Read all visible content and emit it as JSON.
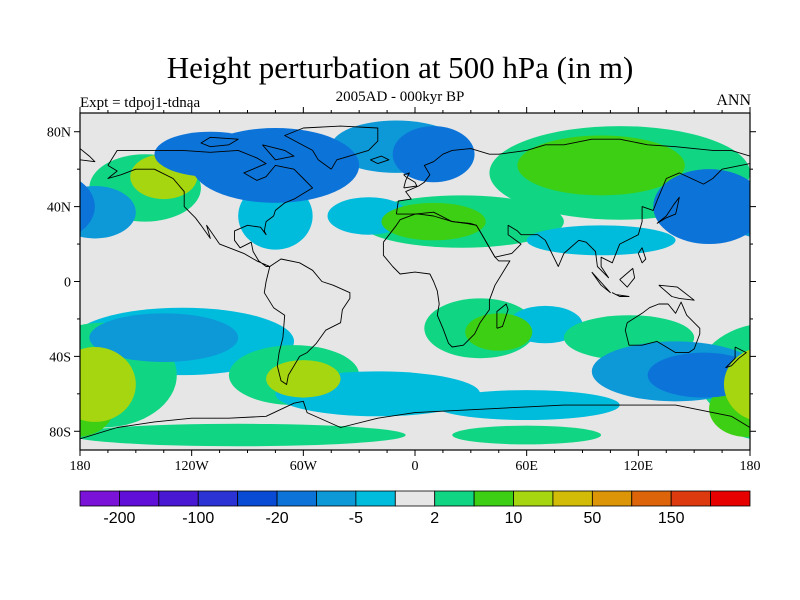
{
  "title": "Height perturbation at 500 hPa (in m)",
  "subtitle": "2005AD - 000kyr BP",
  "left_label": "Expt = tdpoj1-tdnaa",
  "right_label": "ANN",
  "map": {
    "projection": "cylindrical-equidistant",
    "lon_range": [
      -180,
      180
    ],
    "lat_range": [
      -90,
      90
    ],
    "lon_ticks": [
      {
        "value": -180,
        "label": "180"
      },
      {
        "value": -120,
        "label": "120W"
      },
      {
        "value": -60,
        "label": "60W"
      },
      {
        "value": 0,
        "label": "0"
      },
      {
        "value": 60,
        "label": "60E"
      },
      {
        "value": 120,
        "label": "120E"
      },
      {
        "value": 180,
        "label": "180"
      }
    ],
    "lat_ticks": [
      {
        "value": 80,
        "label": "80N"
      },
      {
        "value": 40,
        "label": "40N"
      },
      {
        "value": 0,
        "label": "0"
      },
      {
        "value": -40,
        "label": "40S"
      },
      {
        "value": -80,
        "label": "80S"
      }
    ],
    "background_color": "#e6e6e6",
    "anomalies": [
      {
        "lon": -135,
        "lat": 56,
        "rlon": 18,
        "rlat": 12,
        "level": 3
      },
      {
        "lon": -145,
        "lat": 50,
        "rlon": 30,
        "rlat": 18,
        "level": 1
      },
      {
        "lon": -172,
        "lat": 37,
        "rlon": 22,
        "rlat": 14,
        "level": -2
      },
      {
        "lon": -75,
        "lat": 62,
        "rlon": 45,
        "rlat": 20,
        "level": -3
      },
      {
        "lon": -110,
        "lat": 68,
        "rlon": 30,
        "rlat": 12,
        "level": -3
      },
      {
        "lon": 10,
        "lat": 68,
        "rlon": 22,
        "rlat": 15,
        "level": -3
      },
      {
        "lon": -10,
        "lat": 72,
        "rlon": 35,
        "rlat": 14,
        "level": -2
      },
      {
        "lon": 10,
        "lat": 32,
        "rlon": 28,
        "rlat": 10,
        "level": 2
      },
      {
        "lon": 25,
        "lat": 32,
        "rlon": 55,
        "rlat": 14,
        "level": 1
      },
      {
        "lon": -25,
        "lat": 35,
        "rlon": 22,
        "rlat": 10,
        "level": -1
      },
      {
        "lon": -75,
        "lat": 35,
        "rlon": 20,
        "rlat": 18,
        "level": -1
      },
      {
        "lon": 100,
        "lat": 62,
        "rlon": 45,
        "rlat": 16,
        "level": 2
      },
      {
        "lon": 110,
        "lat": 58,
        "rlon": 70,
        "rlat": 25,
        "level": 1
      },
      {
        "lon": 158,
        "lat": 40,
        "rlon": 30,
        "rlat": 20,
        "level": -3
      },
      {
        "lon": 100,
        "lat": 22,
        "rlon": 40,
        "rlat": 8,
        "level": -1
      },
      {
        "lon": 45,
        "lat": -27,
        "rlon": 18,
        "rlat": 10,
        "level": 2
      },
      {
        "lon": 35,
        "lat": -25,
        "rlon": 30,
        "rlat": 16,
        "level": 1
      },
      {
        "lon": 70,
        "lat": -23,
        "rlon": 20,
        "rlat": 10,
        "level": -1
      },
      {
        "lon": 155,
        "lat": -50,
        "rlon": 30,
        "rlat": 12,
        "level": -3
      },
      {
        "lon": 140,
        "lat": -48,
        "rlon": 45,
        "rlat": 16,
        "level": -2
      },
      {
        "lon": 115,
        "lat": -30,
        "rlon": 35,
        "rlat": 12,
        "level": 1
      },
      {
        "lon": -135,
        "lat": -30,
        "rlon": 40,
        "rlat": 13,
        "level": -2
      },
      {
        "lon": -125,
        "lat": -32,
        "rlon": 60,
        "rlat": 18,
        "level": -1
      },
      {
        "lon": -60,
        "lat": -52,
        "rlon": 20,
        "rlat": 10,
        "level": 3
      },
      {
        "lon": -65,
        "lat": -50,
        "rlon": 35,
        "rlat": 16,
        "level": 1
      },
      {
        "lon": -172,
        "lat": -55,
        "rlon": 22,
        "rlat": 20,
        "level": 3
      },
      {
        "lon": -168,
        "lat": -50,
        "rlon": 40,
        "rlat": 28,
        "level": 1
      },
      {
        "lon": 178,
        "lat": -68,
        "rlon": 20,
        "rlat": 15,
        "level": 2
      },
      {
        "lon": -20,
        "lat": -60,
        "rlon": 55,
        "rlat": 12,
        "level": -1
      },
      {
        "lon": -95,
        "lat": -82,
        "rlon": 90,
        "rlat": 6,
        "level": 1
      },
      {
        "lon": 60,
        "lat": -82,
        "rlon": 40,
        "rlat": 5,
        "level": 1
      },
      {
        "lon": 60,
        "lat": -66,
        "rlon": 50,
        "rlat": 8,
        "level": -1
      }
    ]
  },
  "colorbar": {
    "colors": [
      "#7b12d8",
      "#5f0fd8",
      "#4818d2",
      "#2c33d4",
      "#0a4bd6",
      "#0c74d9",
      "#0d99d8",
      "#00bcdc",
      "#e6e6e6",
      "#10d684",
      "#3dcf13",
      "#a6d60f",
      "#d3bc08",
      "#dd9508",
      "#dd6408",
      "#dd3a10",
      "#e60000"
    ],
    "labels": [
      "-200",
      "-100",
      "-20",
      "-5",
      "2",
      "10",
      "50",
      "150"
    ],
    "label_boundaries": [
      1,
      3,
      5,
      7,
      9,
      11,
      13,
      15
    ]
  }
}
